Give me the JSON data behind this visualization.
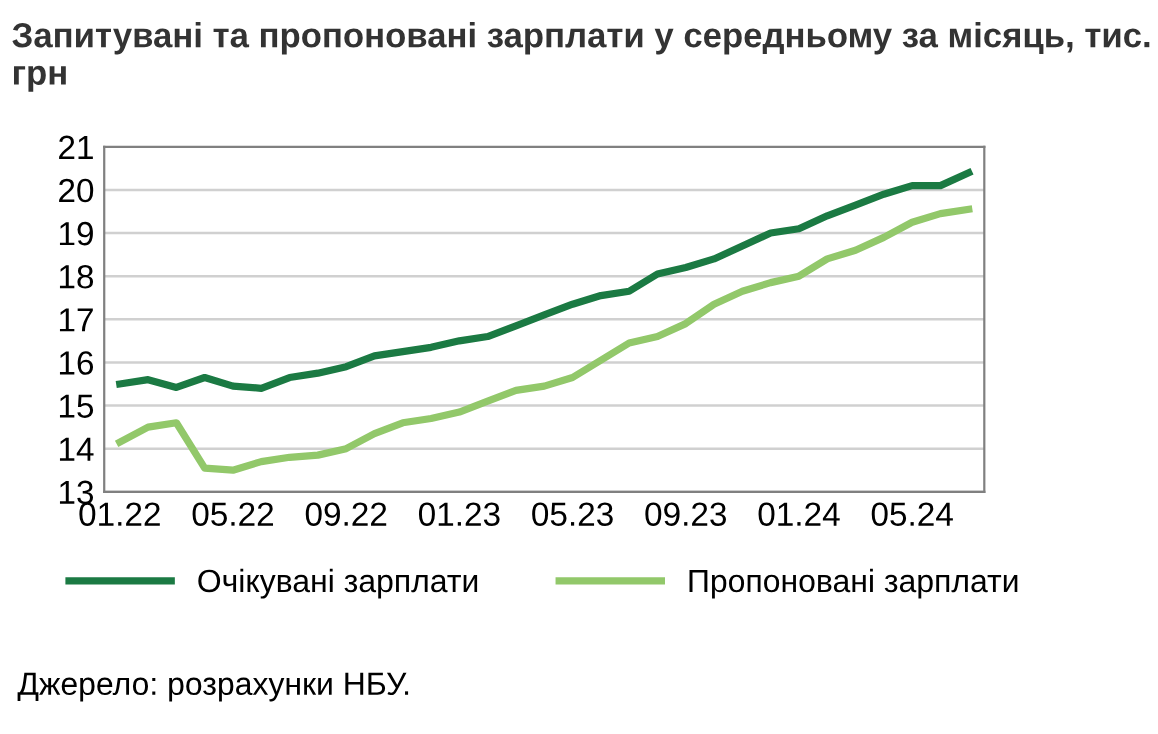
{
  "chart_data": {
    "type": "line",
    "title": "Запитувані та пропоновані зарплати у середньому за місяць, тис. грн",
    "categories": [
      "01.22",
      null,
      null,
      null,
      "05.22",
      null,
      null,
      null,
      "09.22",
      null,
      null,
      null,
      "01.23",
      null,
      null,
      null,
      "05.23",
      null,
      null,
      null,
      "09.23",
      null,
      null,
      null,
      "01.24",
      null,
      null,
      null,
      "05.24",
      null,
      null
    ],
    "series": [
      {
        "name": "Очікувані зарплати",
        "color": "#1b7a43",
        "values": [
          15.5,
          15.6,
          15.42,
          15.65,
          15.45,
          15.4,
          15.65,
          15.75,
          15.9,
          16.15,
          16.25,
          16.35,
          16.5,
          16.6,
          16.85,
          17.1,
          17.35,
          17.55,
          17.65,
          18.05,
          18.2,
          18.4,
          18.7,
          19.0,
          19.1,
          19.4,
          19.65,
          19.9,
          20.1,
          20.1,
          20.4
        ]
      },
      {
        "name": "Пропоновані зарплати",
        "color": "#92c86a",
        "values": [
          14.15,
          14.5,
          14.6,
          13.55,
          13.5,
          13.7,
          13.8,
          13.85,
          14.0,
          14.35,
          14.6,
          14.7,
          14.85,
          15.1,
          15.35,
          15.45,
          15.65,
          16.05,
          16.45,
          16.6,
          16.9,
          17.35,
          17.65,
          17.85,
          18.0,
          18.4,
          18.6,
          18.9,
          19.25,
          19.45,
          19.55
        ]
      }
    ],
    "ylim": [
      13,
      21
    ],
    "yticks": [
      13,
      14,
      15,
      16,
      17,
      18,
      19,
      20,
      21
    ],
    "grid": "y",
    "legend": "bottom",
    "line_style": "solid",
    "marker": "none",
    "annotations": [
      "Джерело: розрахунки НБУ."
    ]
  }
}
